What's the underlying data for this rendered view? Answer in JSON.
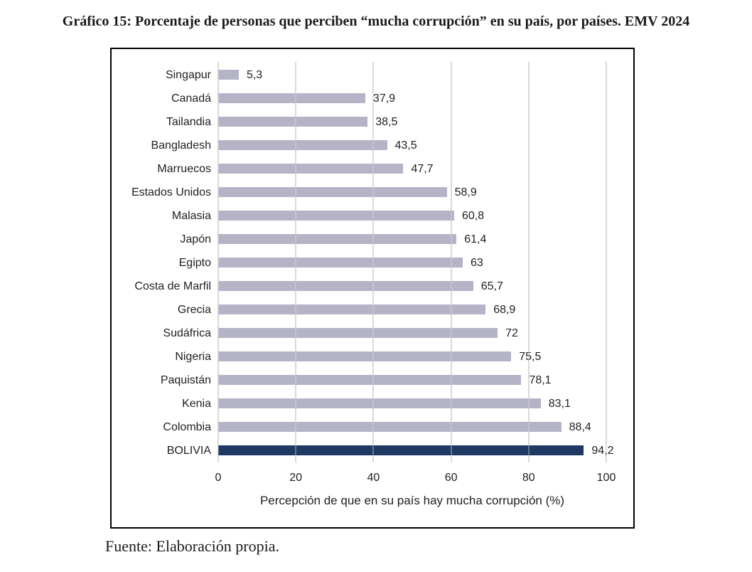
{
  "title": "Gráfico 15: Porcentaje de personas que perciben “mucha corrupción” en su país, por países. EMV 2024",
  "footer": "Fuente: Elaboración propia.",
  "chart_data": {
    "type": "bar",
    "orientation": "horizontal",
    "categories": [
      "Singapur",
      "Canadá",
      "Tailandia",
      "Bangladesh",
      "Marruecos",
      "Estados Unidos",
      "Malasia",
      "Japón",
      "Egipto",
      "Costa de Marfil",
      "Grecia",
      "Sudáfrica",
      "Nigeria",
      "Paquistán",
      "Kenia",
      "Colombia",
      "BOLIVIA"
    ],
    "values": [
      5.3,
      37.9,
      38.5,
      43.5,
      47.7,
      58.9,
      60.8,
      61.4,
      63,
      65.7,
      68.9,
      72,
      75.5,
      78.1,
      83.1,
      88.4,
      94.2
    ],
    "value_labels": [
      "5,3",
      "37,9",
      "38,5",
      "43,5",
      "47,7",
      "58,9",
      "60,8",
      "61,4",
      "63",
      "65,7",
      "68,9",
      "72",
      "75,5",
      "78,1",
      "83,1",
      "88,4",
      "94,2"
    ],
    "xlabel": "Percepción de que en su país hay mucha corrupción (%)",
    "xlim": [
      0,
      100
    ],
    "xticks": [
      0,
      20,
      40,
      60,
      80,
      100
    ],
    "grid": true,
    "legend_position": "none",
    "highlight_category": "BOLIVIA",
    "colors": {
      "bar": "#b5b4c7",
      "highlight": "#1f3864",
      "gridline": "#d9d9d9",
      "frame_border": "#000000",
      "text": "#212121"
    }
  }
}
